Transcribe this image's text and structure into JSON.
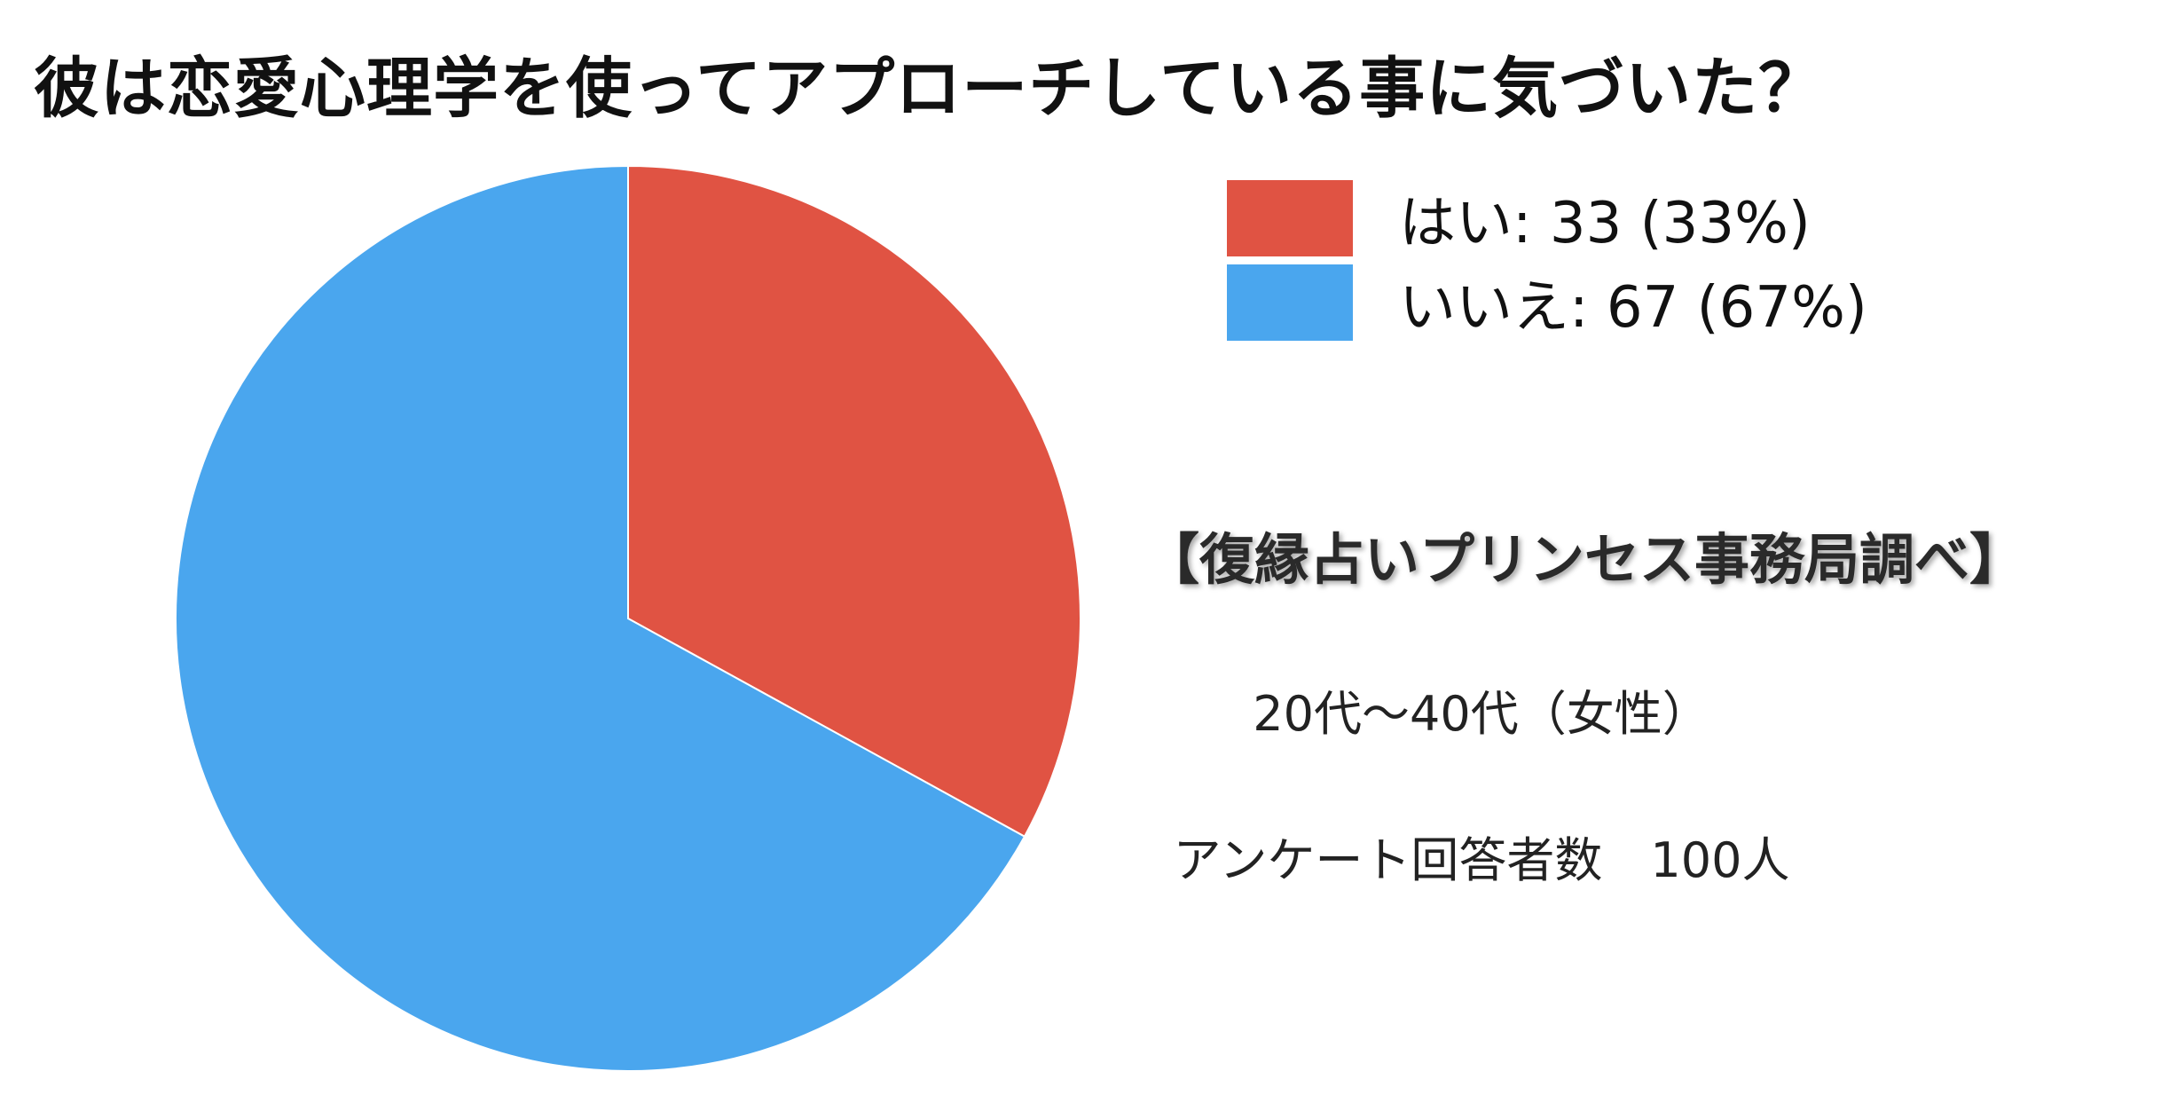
{
  "chart_data": {
    "type": "pie",
    "title": "彼は恋愛心理学を使ってアプローチしている事に気づいた？",
    "categories": [
      "はい",
      "いいえ"
    ],
    "values": [
      33,
      67
    ],
    "percents": [
      33,
      67
    ],
    "colors": [
      "#e05343",
      "#4aa6ee"
    ],
    "legend_position": "top-right",
    "legend": [
      {
        "label": "はい: 33 (33%)",
        "color": "#e05343"
      },
      {
        "label": "いいえ: 67 (67%)",
        "color": "#4aa6ee"
      }
    ]
  },
  "notes": {
    "source": "【復縁占いプリンセス事務局調べ】",
    "age_range": "20代〜40代（女性）",
    "respondents": "アンケート回答者数　100人"
  }
}
